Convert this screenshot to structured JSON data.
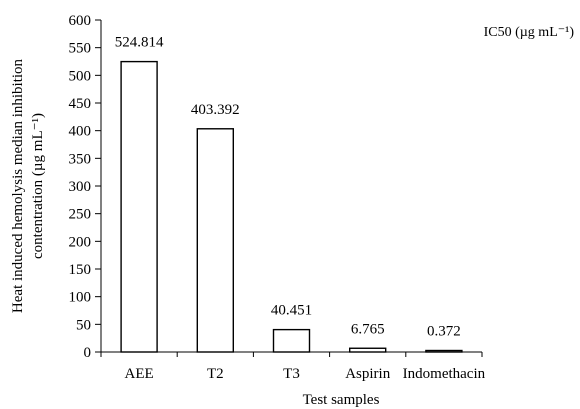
{
  "chart_data": {
    "type": "bar",
    "categories": [
      "AEE",
      "T2",
      "T3",
      "Aspirin",
      "Indomethacin"
    ],
    "values": [
      524.814,
      403.392,
      40.451,
      6.765,
      0.372
    ],
    "data_labels": [
      "524.814",
      "403.392",
      "40.451",
      "6.765",
      "0.372"
    ],
    "xlabel": "Test samples",
    "ylabel_line1": "Heat induced hemolysis median inhibition",
    "ylabel_line2": "contentration (µg mL⁻¹)",
    "legend": "IC50 (µg mL⁻¹)",
    "ylim": [
      0,
      600
    ],
    "yticks": [
      0,
      50,
      100,
      150,
      200,
      250,
      300,
      350,
      400,
      450,
      500,
      550,
      600
    ],
    "grid": false,
    "legend_position": "top-right",
    "colors": {
      "bar_fill": "#ffffff",
      "bar_stroke": "#000000",
      "axis": "#000000"
    }
  }
}
